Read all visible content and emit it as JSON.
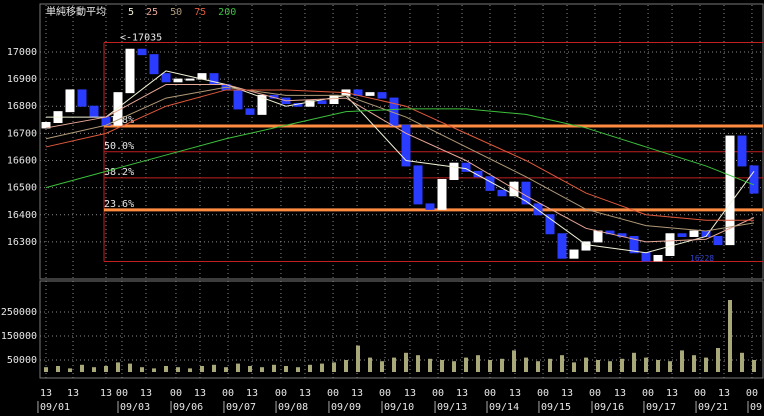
{
  "chart_data": {
    "type": "candlestick",
    "legend_title": "単純移動平均",
    "ylim": [
      16167,
      17173
    ],
    "yticks": [
      16300,
      16400,
      16500,
      16600,
      16700,
      16800,
      16900,
      17000
    ],
    "grid": true,
    "up_color": "#ffffff",
    "down_color": "#2a3cff",
    "open": [
      16720,
      16740,
      16780,
      16860,
      16800,
      16760,
      16730,
      16850,
      17010,
      16990,
      16920,
      16890,
      16900,
      16900,
      16920,
      16880,
      16860,
      16790,
      16770,
      16840,
      16830,
      16810,
      16800,
      16820,
      16810,
      16840,
      16860,
      16840,
      16850,
      16830,
      16730,
      16580,
      16440,
      16420,
      16530,
      16590,
      16560,
      16540,
      16490,
      16470,
      16520,
      16440,
      16400,
      16330,
      16240,
      16270,
      16300,
      16340,
      16330,
      16320,
      16260,
      16230,
      16250,
      16330,
      16320,
      16340,
      16320,
      16290,
      16690,
      16580
    ],
    "close": [
      16740,
      16780,
      16860,
      16800,
      16760,
      16730,
      16850,
      17010,
      16990,
      16920,
      16890,
      16900,
      16900,
      16920,
      16880,
      16860,
      16790,
      16770,
      16840,
      16830,
      16810,
      16800,
      16820,
      16810,
      16840,
      16860,
      16840,
      16850,
      16830,
      16730,
      16580,
      16440,
      16420,
      16530,
      16590,
      16560,
      16540,
      16490,
      16470,
      16520,
      16440,
      16400,
      16330,
      16240,
      16270,
      16300,
      16340,
      16330,
      16320,
      16260,
      16230,
      16250,
      16330,
      16320,
      16340,
      16320,
      16290,
      16690,
      16580,
      16480
    ],
    "xticks": [
      {
        "value": 0,
        "label": "13"
      },
      {
        "value": 2.25,
        "label": "13"
      },
      {
        "value": 5,
        "label": "13"
      },
      {
        "value": 6.33,
        "label": "00"
      },
      {
        "value": 8.33,
        "label": "13"
      },
      {
        "value": 10.83,
        "label": "00"
      },
      {
        "value": 12.83,
        "label": "13"
      },
      {
        "value": 15.17,
        "label": "00"
      },
      {
        "value": 17.17,
        "label": "13"
      },
      {
        "value": 19.58,
        "label": "00"
      },
      {
        "value": 21.58,
        "label": "13"
      },
      {
        "value": 23.92,
        "label": "00"
      },
      {
        "value": 25.92,
        "label": "13"
      },
      {
        "value": 28.25,
        "label": "00"
      },
      {
        "value": 30.33,
        "label": "13"
      },
      {
        "value": 32.67,
        "label": "00"
      },
      {
        "value": 34.67,
        "label": "13"
      },
      {
        "value": 37,
        "label": "00"
      },
      {
        "value": 39.08,
        "label": "13"
      },
      {
        "value": 41.42,
        "label": "00"
      },
      {
        "value": 43.42,
        "label": "13"
      },
      {
        "value": 45.75,
        "label": "00"
      },
      {
        "value": 47.83,
        "label": "13"
      },
      {
        "value": 50.17,
        "label": "00"
      },
      {
        "value": 52.17,
        "label": "13"
      },
      {
        "value": 54.5,
        "label": "00"
      },
      {
        "value": 56.5,
        "label": "13"
      },
      {
        "value": 58.83,
        "label": "00"
      }
    ],
    "date_ticks": [
      {
        "value": -0.67,
        "label": "09/01"
      },
      {
        "value": 6,
        "label": "09/03"
      },
      {
        "value": 10.42,
        "label": "09/06"
      },
      {
        "value": 14.83,
        "label": "09/07"
      },
      {
        "value": 19.17,
        "label": "09/08"
      },
      {
        "value": 23.58,
        "label": "09/09"
      },
      {
        "value": 28,
        "label": "09/10"
      },
      {
        "value": 32.42,
        "label": "09/13"
      },
      {
        "value": 36.75,
        "label": "09/14"
      },
      {
        "value": 41.08,
        "label": "09/15"
      },
      {
        "value": 45.5,
        "label": "09/16"
      },
      {
        "value": 49.83,
        "label": "09/17"
      },
      {
        "value": 54.17,
        "label": "09/21"
      },
      {
        "value": 58.5,
        "label": "09"
      }
    ],
    "moving_averages": {
      "x": [
        0,
        5,
        10,
        15,
        20,
        25,
        30,
        35,
        40,
        45,
        50,
        55,
        59
      ],
      "series": [
        {
          "name": "5",
          "color": "#f2f2d8",
          "values": [
            16760,
            16760,
            16930,
            16880,
            16800,
            16840,
            16600,
            16570,
            16450,
            16290,
            16260,
            16320,
            16560
          ]
        },
        {
          "name": "25",
          "color": "#e8a898",
          "values": [
            16720,
            16760,
            16880,
            16880,
            16820,
            16830,
            16700,
            16600,
            16470,
            16350,
            16300,
            16310,
            16390
          ]
        },
        {
          "name": "50",
          "color": "#b09a78",
          "values": [
            16680,
            16730,
            16830,
            16870,
            16840,
            16840,
            16760,
            16650,
            16540,
            16420,
            16360,
            16340,
            16370
          ]
        },
        {
          "name": "75",
          "color": "#e05a3c",
          "values": [
            16650,
            16700,
            16800,
            16860,
            16860,
            16850,
            16800,
            16700,
            16600,
            16480,
            16400,
            16380,
            16380
          ]
        },
        {
          "name": "200",
          "color": "#3cc03c",
          "values": [
            16500,
            16560,
            16620,
            16680,
            16730,
            16780,
            16790,
            16790,
            16770,
            16720,
            16650,
            16580,
            16510
          ]
        }
      ]
    },
    "fibonacci": {
      "high": {
        "value": 17035,
        "label": "<-17035"
      },
      "low": 16228,
      "line_color": "#c02020",
      "levels": [
        {
          "value": 16727,
          "label": "61.8%",
          "color": "#ff8c40"
        },
        {
          "value": 16632,
          "label": "50.0%",
          "color": "#c02020"
        },
        {
          "value": 16536,
          "label": "38.2%",
          "color": "#c02020"
        },
        {
          "value": 16418,
          "label": "23.6%",
          "color": "#ff8c40"
        }
      ]
    },
    "volume": {
      "color": "#a8a878",
      "ylim": [
        -16667,
        375000
      ],
      "yticks": [
        50000,
        150000,
        250000
      ],
      "values": [
        20000,
        25000,
        15000,
        30000,
        20000,
        25000,
        40000,
        35000,
        20000,
        15000,
        25000,
        20000,
        15000,
        25000,
        30000,
        20000,
        35000,
        25000,
        20000,
        30000,
        25000,
        20000,
        30000,
        35000,
        40000,
        50000,
        110000,
        60000,
        45000,
        60000,
        80000,
        70000,
        55000,
        50000,
        45000,
        60000,
        70000,
        50000,
        55000,
        90000,
        60000,
        45000,
        55000,
        70000,
        40000,
        60000,
        50000,
        45000,
        55000,
        80000,
        60000,
        50000,
        45000,
        90000,
        70000,
        60000,
        100000,
        300000,
        80000,
        50000
      ]
    }
  }
}
